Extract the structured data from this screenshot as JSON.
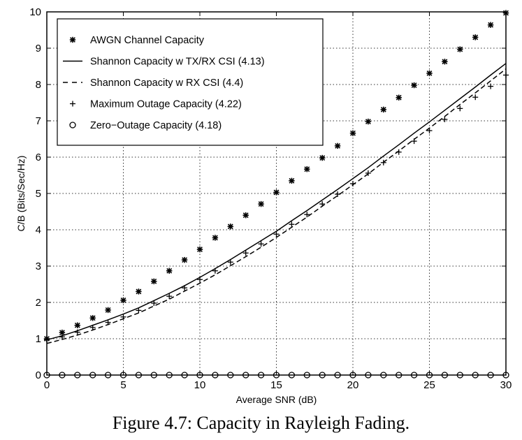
{
  "caption": "Figure 4.7: Capacity in Rayleigh Fading.",
  "chart_data": {
    "type": "line",
    "xlabel": "Average SNR (dB)",
    "ylabel": "C/B (Bits/Sec/Hz)",
    "xlim": [
      0,
      30
    ],
    "ylim": [
      0,
      10
    ],
    "xticks": [
      0,
      5,
      10,
      15,
      20,
      25,
      30
    ],
    "yticks": [
      0,
      1,
      2,
      3,
      4,
      5,
      6,
      7,
      8,
      9,
      10
    ],
    "grid": true,
    "legend_position": "top-left",
    "x": [
      0,
      1,
      2,
      3,
      4,
      5,
      6,
      7,
      8,
      9,
      10,
      11,
      12,
      13,
      14,
      15,
      16,
      17,
      18,
      19,
      20,
      21,
      22,
      23,
      24,
      25,
      26,
      27,
      28,
      29,
      30
    ],
    "series": [
      {
        "name": "AWGN Channel Capacity",
        "style": "markers-asterisk",
        "values": [
          1.0,
          1.17,
          1.37,
          1.57,
          1.79,
          2.06,
          2.3,
          2.58,
          2.87,
          3.17,
          3.46,
          3.78,
          4.09,
          4.4,
          4.71,
          5.03,
          5.35,
          5.67,
          5.98,
          6.31,
          6.66,
          6.98,
          7.31,
          7.64,
          7.98,
          8.31,
          8.63,
          8.97,
          9.3,
          9.64,
          9.97
        ]
      },
      {
        "name": "Shannon Capacity w TX/RX CSI (4.13)",
        "style": "solid",
        "values": [
          0.97,
          1.08,
          1.22,
          1.37,
          1.52,
          1.68,
          1.85,
          2.05,
          2.25,
          2.46,
          2.69,
          2.93,
          3.18,
          3.44,
          3.7,
          3.96,
          4.25,
          4.53,
          4.82,
          5.11,
          5.41,
          5.71,
          6.03,
          6.34,
          6.66,
          6.97,
          7.29,
          7.61,
          7.93,
          8.26,
          8.58
        ]
      },
      {
        "name": "Shannon Capacity w RX CSI (4.4)",
        "style": "dashed",
        "values": [
          0.87,
          0.98,
          1.1,
          1.24,
          1.39,
          1.55,
          1.71,
          1.9,
          2.09,
          2.31,
          2.53,
          2.76,
          3.01,
          3.26,
          3.52,
          3.79,
          4.07,
          4.35,
          4.65,
          4.94,
          5.24,
          5.54,
          5.86,
          6.17,
          6.49,
          6.8,
          7.12,
          7.45,
          7.77,
          8.1,
          8.43
        ]
      },
      {
        "name": "Maximum Outage Capacity (4.22)",
        "style": "markers-plus",
        "values": [
          0.97,
          1.05,
          1.18,
          1.31,
          1.45,
          1.6,
          1.78,
          1.98,
          2.17,
          2.4,
          2.63,
          2.87,
          3.11,
          3.36,
          3.61,
          3.88,
          4.15,
          4.42,
          4.71,
          4.98,
          5.27,
          5.56,
          5.85,
          6.14,
          6.44,
          6.73,
          7.04,
          7.34,
          7.65,
          7.95,
          8.26
        ]
      },
      {
        "name": "Zero-Outage Capacity (4.18)",
        "style": "markers-circle",
        "values": [
          0,
          0,
          0,
          0,
          0,
          0,
          0,
          0,
          0,
          0,
          0,
          0,
          0,
          0,
          0,
          0,
          0,
          0,
          0,
          0,
          0,
          0,
          0,
          0,
          0,
          0,
          0,
          0,
          0,
          0,
          0
        ]
      }
    ]
  },
  "legend": {
    "items": [
      {
        "label": "AWGN Channel Capacity",
        "symbol": "asterisk"
      },
      {
        "label": "Shannon Capacity w TX/RX CSI (4.13)",
        "symbol": "solid"
      },
      {
        "label": "Shannon Capacity w RX CSI (4.4)",
        "symbol": "dashed"
      },
      {
        "label": "Maximum Outage Capacity (4.22)",
        "symbol": "plus"
      },
      {
        "label": "Zero−Outage Capacity (4.18)",
        "symbol": "circle"
      }
    ]
  }
}
